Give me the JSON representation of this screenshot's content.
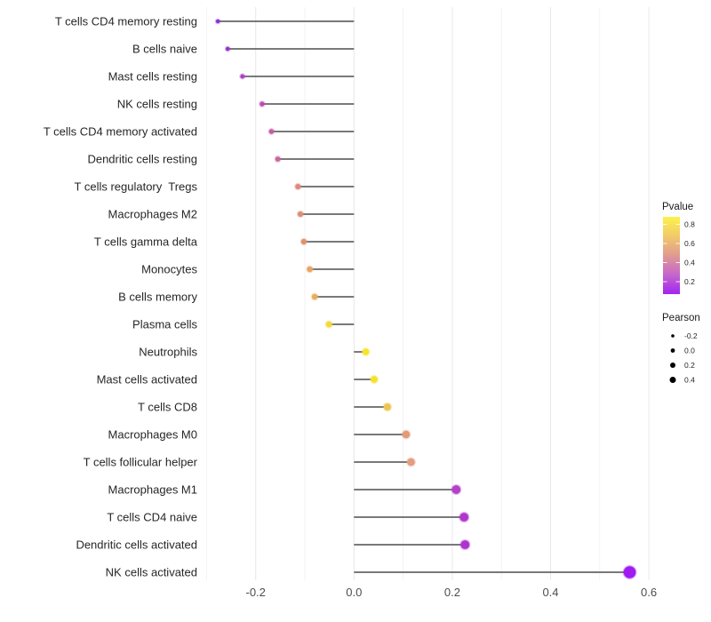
{
  "chart_data": {
    "type": "lollipop",
    "orientation": "horizontal",
    "title": "",
    "xlabel": "",
    "ylabel": "",
    "categories": [
      "T cells CD4 memory resting",
      "B cells naive",
      "Mast cells resting",
      "NK cells resting",
      "T cells CD4 memory activated",
      "Dendritic cells resting",
      "T cells regulatory  Tregs",
      "Macrophages M2",
      "T cells gamma delta",
      "Monocytes",
      "B cells memory",
      "Plasma cells",
      "Neutrophils",
      "Mast cells activated",
      "T cells CD8",
      "Macrophages M0",
      "T cells follicular helper",
      "Macrophages M1",
      "T cells CD4 naive",
      "Dendritic cells activated",
      "NK cells activated"
    ],
    "series": [
      {
        "name": "Pearson",
        "values": [
          -0.277,
          -0.257,
          -0.227,
          -0.187,
          -0.168,
          -0.155,
          -0.114,
          -0.109,
          -0.102,
          -0.09,
          -0.08,
          -0.051,
          0.024,
          0.041,
          0.068,
          0.106,
          0.116,
          0.208,
          0.224,
          0.226,
          0.561
        ]
      }
    ],
    "point_colors": [
      "#8C2BD5",
      "#9933CC",
      "#AC3FC4",
      "#BB4DB4",
      "#C55CA6",
      "#C9659F",
      "#DC8A7B",
      "#DD8E76",
      "#DE9171",
      "#E9A464",
      "#ECAB5E",
      "#F2DA3C",
      "#F5E52B",
      "#F4E130",
      "#EEC553",
      "#E19B79",
      "#E39D80",
      "#B440C8",
      "#B037CD",
      "#AE33D0",
      "#A01BF0"
    ],
    "xlim": [
      -0.32,
      0.61
    ],
    "x_ticks": [
      -0.2,
      0.0,
      0.2,
      0.4,
      0.6
    ],
    "x_tick_labels": [
      "-0.2",
      "0.0",
      "0.2",
      "0.4",
      "0.6"
    ],
    "x_minor_gridlines": [
      -0.3,
      -0.1,
      0.1,
      0.3,
      0.5
    ],
    "grid": "vertical-major-and-minor",
    "legend_position": "right"
  },
  "legends": {
    "pvalue": {
      "title": "Pvalue",
      "tick_labels": [
        "0.8",
        "0.6",
        "0.4",
        "0.2"
      ],
      "gradient_top_to_bottom": [
        "#FBF34B",
        "#F2C969",
        "#E09A92",
        "#C566CC",
        "#A124F2"
      ]
    },
    "pearson": {
      "title": "Pearson",
      "items": [
        {
          "label": "-0.2",
          "r": 1.8
        },
        {
          "label": "0.0",
          "r": 2.4
        },
        {
          "label": "0.2",
          "r": 3.0
        },
        {
          "label": "0.4",
          "r": 3.5
        }
      ]
    }
  },
  "colors": {
    "background": "#FFFFFF",
    "stem": "#4D4D4D",
    "axis_text": "#4D4D4D",
    "category_text": "#262626",
    "legend_title_text": "#1A1A1A",
    "legend_dot": "#000000",
    "grid_major": "#E8E8E8",
    "grid_minor": "#F3F3F3"
  }
}
